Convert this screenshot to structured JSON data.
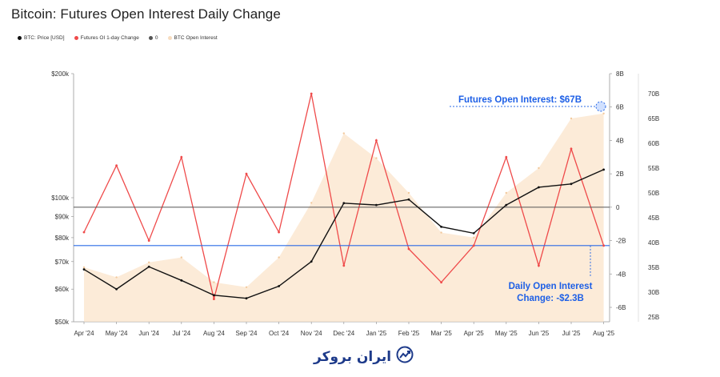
{
  "chart_data": {
    "type": "line",
    "title": "Bitcoin: Futures Open Interest Daily Change",
    "legend": [
      {
        "label": "BTC: Price [USD]",
        "color": "#111111"
      },
      {
        "label": "Futures OI 1-day Change",
        "color": "#ef4a4a"
      },
      {
        "label": "0",
        "color": "#555555"
      },
      {
        "label": "BTC Open Interest",
        "color": "#f7dcbf"
      }
    ],
    "x_ticks": [
      "Apr '24",
      "May '24",
      "Jun '24",
      "Jul '24",
      "Aug '24",
      "Sep '24",
      "Oct '24",
      "Nov '24",
      "Dec '24",
      "Jan '25",
      "Feb '25",
      "Mar '25",
      "Apr '25",
      "May '25",
      "Jun '25",
      "Jul '25",
      "Aug '25"
    ],
    "y_left": {
      "scale": "log",
      "ticks": [
        "$50k",
        "$60k",
        "$70k",
        "$80k",
        "$90k",
        "$100k",
        "$200k"
      ],
      "range": [
        50000,
        200000
      ]
    },
    "y_right_inner": {
      "ticks": [
        "8B",
        "6B",
        "4B",
        "2B",
        "0",
        "-2B",
        "-4B",
        "-6B"
      ],
      "range": [
        -7,
        8
      ]
    },
    "y_right_outer": {
      "ticks": [
        "70B",
        "65B",
        "60B",
        "55B",
        "50B",
        "45B",
        "40B",
        "35B",
        "30B",
        "25B"
      ],
      "range": [
        25,
        70
      ]
    },
    "series": [
      {
        "name": "BTC: Price [USD]",
        "x": [
          "Apr '24",
          "May '24",
          "Jun '24",
          "Jul '24",
          "Aug '24",
          "Sep '24",
          "Oct '24",
          "Nov '24",
          "Dec '24",
          "Jan '25",
          "Feb '25",
          "Mar '25",
          "Apr '25",
          "May '25",
          "Jun '25",
          "Jul '25",
          "Aug '25"
        ],
        "values": [
          67000,
          60000,
          68000,
          63000,
          58000,
          57000,
          61000,
          70000,
          97000,
          96000,
          99000,
          85000,
          82000,
          96000,
          106000,
          108000,
          117000
        ]
      },
      {
        "name": "Futures OI 1-day Change",
        "x": [
          "Apr '24",
          "May '24",
          "Jun '24",
          "Jul '24",
          "Aug '24",
          "Sep '24",
          "Oct '24",
          "Nov '24",
          "Dec '24",
          "Jan '25",
          "Feb '25",
          "Mar '25",
          "Apr '25",
          "May '25",
          "Jun '25",
          "Jul '25",
          "Aug '25"
        ],
        "values": [
          -1.5,
          2.5,
          -2.0,
          3.0,
          -5.5,
          2.0,
          -1.5,
          6.8,
          -3.5,
          4.0,
          -2.5,
          -4.5,
          -2.3,
          3.0,
          -3.5,
          3.5,
          -2.3
        ]
      },
      {
        "name": "BTC Open Interest",
        "x": [
          "Apr '24",
          "May '24",
          "Jun '24",
          "Jul '24",
          "Aug '24",
          "Sep '24",
          "Oct '24",
          "Nov '24",
          "Dec '24",
          "Jan '25",
          "Feb '25",
          "Mar '25",
          "Apr '25",
          "May '25",
          "Jun '25",
          "Jul '25",
          "Aug '25"
        ],
        "values": [
          35,
          33,
          36,
          37,
          32,
          31,
          37,
          48,
          62,
          57,
          50,
          42,
          41,
          50,
          55,
          65,
          66
        ]
      }
    ],
    "zero_line": 0,
    "reference_line": -2.3,
    "annotations": [
      {
        "text": "Futures Open Interest: $67B"
      },
      {
        "text_lines": [
          "Daily Open Interest",
          "Change: -$2.3B"
        ]
      }
    ],
    "grid": false,
    "legend_position": "top-left"
  },
  "watermark": {
    "text": "ایران بروکر"
  }
}
